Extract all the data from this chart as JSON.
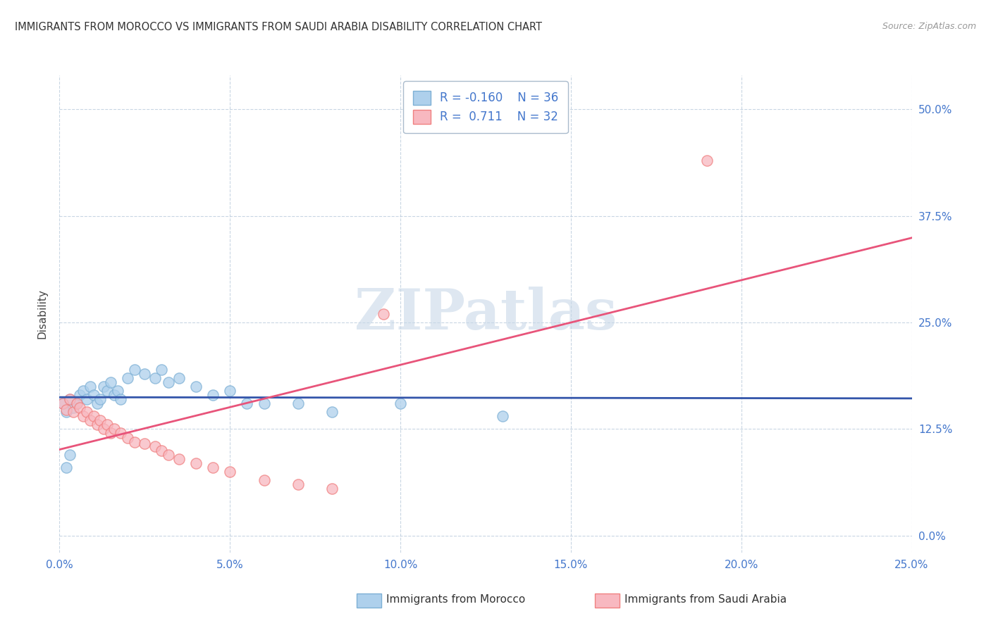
{
  "title": "IMMIGRANTS FROM MOROCCO VS IMMIGRANTS FROM SAUDI ARABIA DISABILITY CORRELATION CHART",
  "source": "Source: ZipAtlas.com",
  "xlim": [
    0.0,
    0.25
  ],
  "ylim": [
    -0.02,
    0.54
  ],
  "ylabel": "Disability",
  "morocco_R": "-0.160",
  "morocco_N": "36",
  "saudi_R": "0.711",
  "saudi_N": "32",
  "morocco_color": "#7EB0D5",
  "morocco_fill": "#AED0EC",
  "saudi_color": "#F08080",
  "saudi_fill": "#F8B8C0",
  "line_morocco_color": "#3355AA",
  "line_saudi_color": "#E8547A",
  "watermark": "ZIPatlas",
  "watermark_color": "#C8D8E8",
  "morocco_x": [
    0.001,
    0.002,
    0.003,
    0.004,
    0.005,
    0.006,
    0.007,
    0.008,
    0.009,
    0.01,
    0.011,
    0.012,
    0.013,
    0.014,
    0.015,
    0.016,
    0.017,
    0.018,
    0.02,
    0.022,
    0.025,
    0.028,
    0.03,
    0.032,
    0.035,
    0.04,
    0.045,
    0.05,
    0.055,
    0.06,
    0.07,
    0.08,
    0.1,
    0.13,
    0.002,
    0.003
  ],
  "morocco_y": [
    0.155,
    0.145,
    0.16,
    0.15,
    0.155,
    0.165,
    0.17,
    0.16,
    0.175,
    0.165,
    0.155,
    0.16,
    0.175,
    0.17,
    0.18,
    0.165,
    0.17,
    0.16,
    0.185,
    0.195,
    0.19,
    0.185,
    0.195,
    0.18,
    0.185,
    0.175,
    0.165,
    0.17,
    0.155,
    0.155,
    0.155,
    0.145,
    0.155,
    0.14,
    0.08,
    0.095
  ],
  "saudi_x": [
    0.001,
    0.002,
    0.003,
    0.004,
    0.005,
    0.006,
    0.007,
    0.008,
    0.009,
    0.01,
    0.011,
    0.012,
    0.013,
    0.014,
    0.015,
    0.016,
    0.018,
    0.02,
    0.022,
    0.025,
    0.028,
    0.03,
    0.032,
    0.035,
    0.04,
    0.045,
    0.05,
    0.06,
    0.07,
    0.08,
    0.095,
    0.19
  ],
  "saudi_y": [
    0.155,
    0.148,
    0.16,
    0.145,
    0.155,
    0.15,
    0.14,
    0.145,
    0.135,
    0.14,
    0.13,
    0.135,
    0.125,
    0.13,
    0.12,
    0.125,
    0.12,
    0.115,
    0.11,
    0.108,
    0.105,
    0.1,
    0.095,
    0.09,
    0.085,
    0.08,
    0.075,
    0.065,
    0.06,
    0.055,
    0.26,
    0.44
  ]
}
